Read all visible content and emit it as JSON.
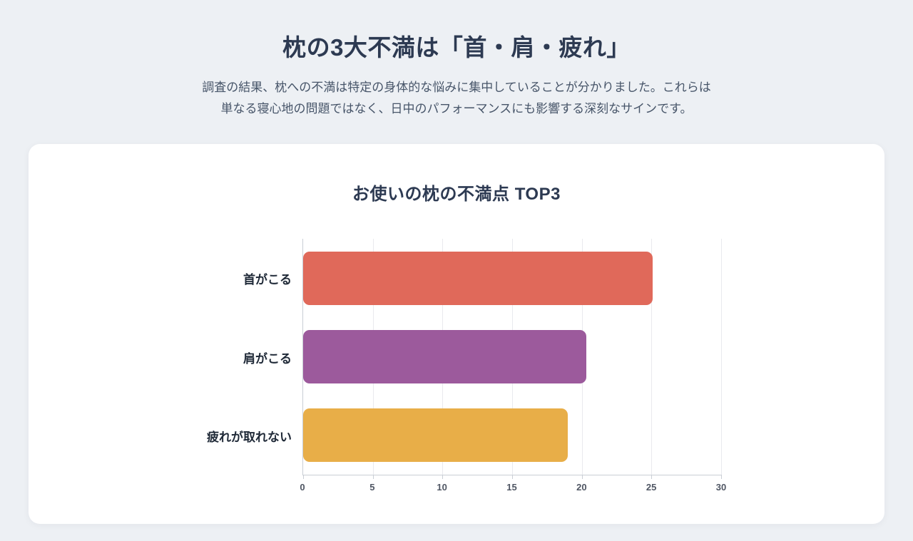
{
  "header": {
    "title": "枕の3大不満は「首・肩・疲れ」",
    "subtitle_lines": [
      "調査の結果、枕への不満は特定の身体的な悩みに集中していることが分かりました。これらは",
      "単なる寝心地の問題ではなく、日中のパフォーマンスにも影響する深刻なサインです。"
    ]
  },
  "chart_data": {
    "type": "bar",
    "orientation": "horizontal",
    "title": "お使いの枕の不満点 TOP3",
    "categories": [
      "首がこる",
      "肩がこる",
      "疲れが取れない"
    ],
    "values": [
      25.1,
      20.3,
      19
    ],
    "bar_colors": [
      "#e0695a",
      "#9c5a9c",
      "#e8ae48"
    ],
    "xlabel": "",
    "ylabel": "",
    "xlim": [
      0,
      30
    ],
    "x_ticks": [
      0,
      5,
      10,
      15,
      20,
      25,
      30
    ],
    "grid": true,
    "legend": false
  },
  "colors": {
    "page_bg": "#edf0f4",
    "card_bg": "#ffffff",
    "heading": "#2d3a52",
    "subtitle": "#475569",
    "axis": "#c9ced5",
    "gridline": "#e9eaee"
  }
}
